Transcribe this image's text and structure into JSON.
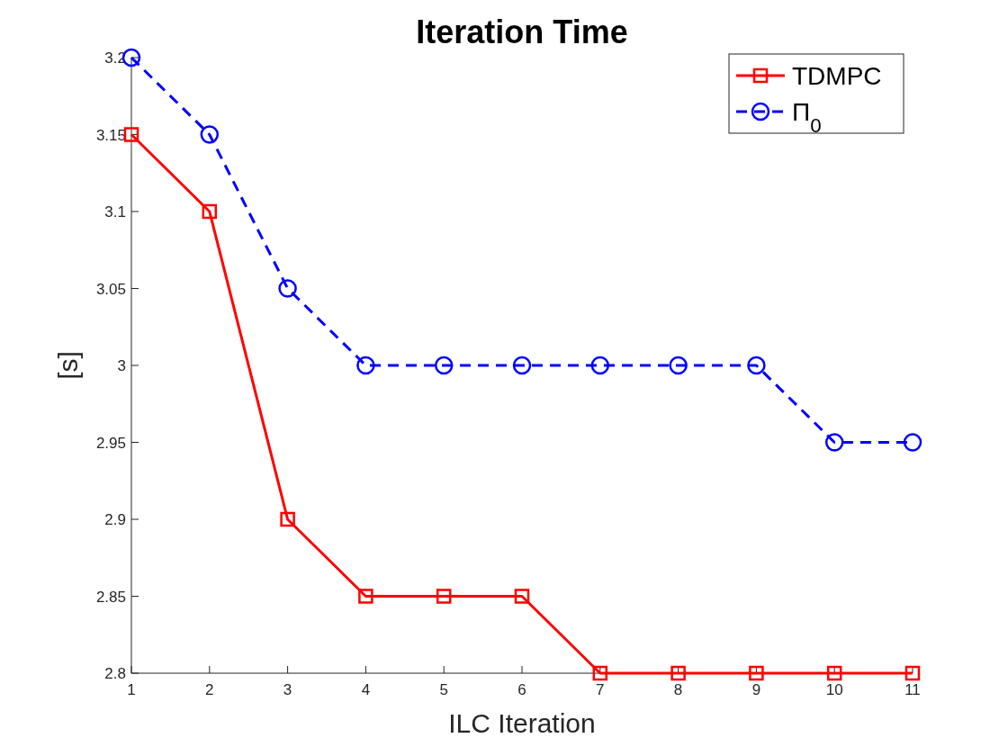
{
  "chart_data": {
    "type": "line",
    "title": "Iteration Time",
    "xlabel": "ILC Iteration",
    "ylabel": "[s]",
    "x": [
      1,
      2,
      3,
      4,
      5,
      6,
      7,
      8,
      9,
      10,
      11
    ],
    "series": [
      {
        "name": "TDMPC",
        "color": "#ff0000",
        "marker": "square",
        "line_style": "solid",
        "values": [
          3.15,
          3.1,
          2.9,
          2.85,
          2.85,
          2.85,
          2.8,
          2.8,
          2.8,
          2.8,
          2.8
        ]
      },
      {
        "name": "Π$_{0}$",
        "color": "#0000ff",
        "marker": "circle",
        "line_style": "dashed",
        "values": [
          3.2,
          3.15,
          3.05,
          3,
          3,
          3,
          3,
          3,
          3,
          2.95,
          2.95
        ]
      }
    ],
    "xlim": [
      1,
      11
    ],
    "xticks": [
      1,
      2,
      3,
      4,
      5,
      6,
      7,
      8,
      9,
      10,
      11
    ],
    "ylim": [
      2.8,
      3.2
    ],
    "yticks": [
      2.8,
      2.85,
      2.9,
      2.95,
      3,
      3.05,
      3.1,
      3.15,
      3.2
    ],
    "grid": false,
    "legend": "top right"
  }
}
